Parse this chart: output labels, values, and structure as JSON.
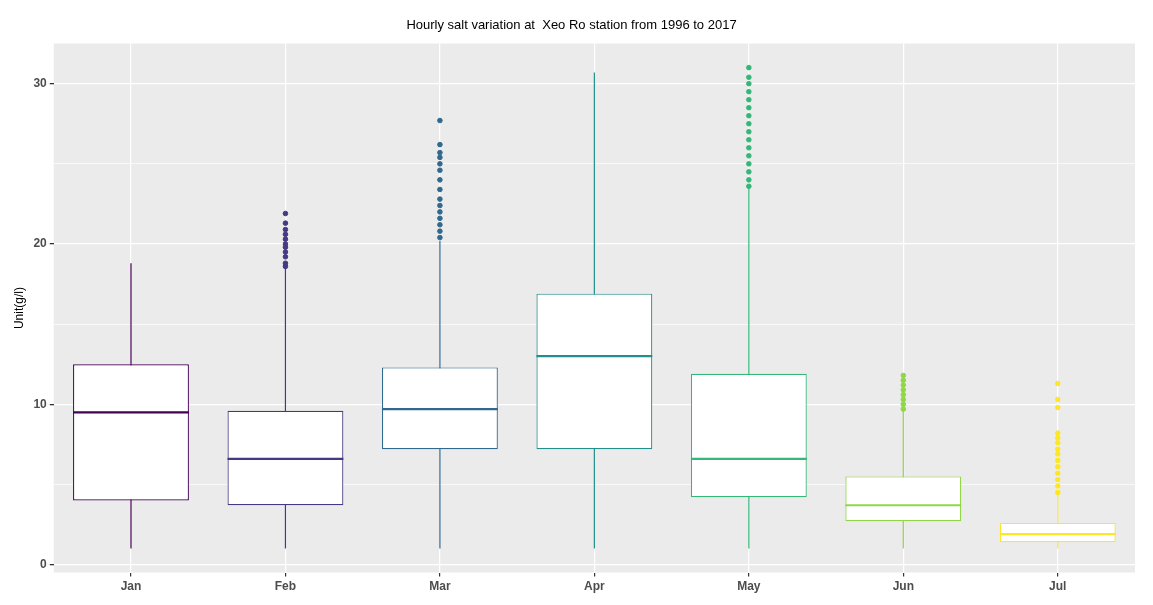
{
  "chart_data": {
    "type": "box",
    "title": "Hourly salt variation at  Xeo Ro station from 1996 to 2017",
    "ylabel": "Unit(g/l)",
    "categories": [
      "Jan",
      "Feb",
      "Mar",
      "Apr",
      "May",
      "Jun",
      "Jul"
    ],
    "colors": [
      "#440154",
      "#443a83",
      "#31688e",
      "#21908c",
      "#35b779",
      "#8fd744",
      "#fde725"
    ],
    "boxes": [
      {
        "low": 1.0,
        "q1": 4.0,
        "median": 9.5,
        "q3": 12.5,
        "high": 18.8
      },
      {
        "low": 1.0,
        "q1": 3.7,
        "median": 6.6,
        "q3": 9.6,
        "high": 18.5,
        "outliers": [
          18.6,
          18.8,
          19.2,
          19.5,
          19.8,
          20.0,
          20.3,
          20.6,
          20.9,
          21.3,
          21.9
        ]
      },
      {
        "low": 1.0,
        "q1": 7.2,
        "median": 9.7,
        "q3": 12.3,
        "high": 20.2,
        "outliers": [
          20.4,
          20.8,
          21.2,
          21.6,
          22.0,
          22.4,
          22.8,
          23.4,
          24.0,
          24.6,
          25.0,
          25.4,
          25.7,
          26.2,
          27.7
        ]
      },
      {
        "low": 1.0,
        "q1": 7.2,
        "median": 13.0,
        "q3": 16.9,
        "high": 30.7
      },
      {
        "low": 1.0,
        "q1": 4.2,
        "median": 6.6,
        "q3": 11.9,
        "high": 23.5,
        "outliers": [
          23.6,
          24.0,
          24.5,
          25.0,
          25.5,
          26.0,
          26.5,
          27.0,
          27.5,
          28.0,
          28.5,
          29.0,
          29.5,
          30.0,
          30.4,
          31.0
        ]
      },
      {
        "low": 1.0,
        "q1": 2.7,
        "median": 3.7,
        "q3": 5.5,
        "high": 9.6,
        "outliers": [
          9.7,
          10.0,
          10.3,
          10.6,
          10.9,
          11.2,
          11.5,
          11.8
        ]
      },
      {
        "low": 1.0,
        "q1": 1.4,
        "median": 1.9,
        "q3": 2.6,
        "high": 4.4,
        "outliers": [
          4.5,
          4.9,
          5.3,
          5.7,
          6.1,
          6.5,
          6.9,
          7.2,
          7.6,
          7.9,
          8.2,
          9.8,
          10.3,
          11.3
        ]
      }
    ],
    "ylim": [
      -0.5,
      32.5
    ],
    "yticks": [
      0,
      {
        "value": 5,
        "label": null
      },
      10,
      {
        "value": 15,
        "label": null
      },
      20,
      {
        "value": 25,
        "label": null
      },
      30
    ],
    "grid": true,
    "legend": false
  }
}
